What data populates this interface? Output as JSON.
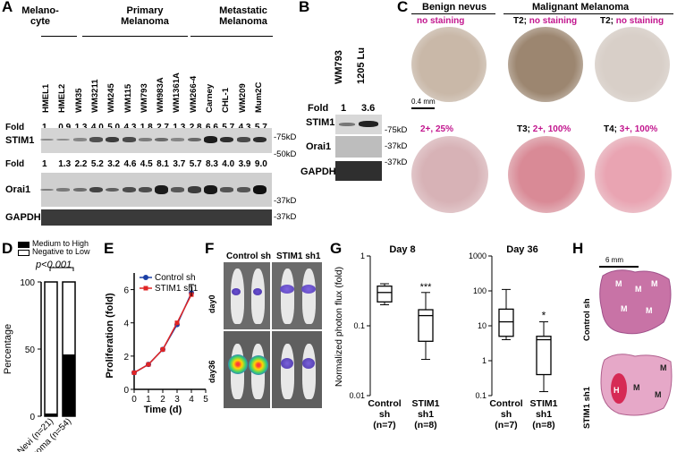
{
  "panelA": {
    "label": "A",
    "groups": [
      "Melano-\ncyte",
      "Primary\nMelanoma",
      "Metastatic\nMelanoma"
    ],
    "lanes": [
      "HMEL1",
      "HMEL2",
      "WM35",
      "WM3211",
      "WM245",
      "WM115",
      "WM793",
      "WM983A",
      "WM1361A",
      "WM266-4",
      "Carney",
      "CHL-1",
      "WM209",
      "Mum2C"
    ],
    "fold1_label": "Fold",
    "fold1": [
      "1",
      "0.9",
      "1.3",
      "4.0",
      "5.0",
      "4.3",
      "1.8",
      "2.7",
      "1.3",
      "2.8",
      "6.6",
      "5.7",
      "4.3",
      "5.7"
    ],
    "fold2_label": "Fold",
    "fold2": [
      "1",
      "1.3",
      "2.2",
      "5.2",
      "3.2",
      "4.6",
      "4.5",
      "8.1",
      "3.7",
      "5.7",
      "8.3",
      "4.0",
      "3.9",
      "9.0"
    ],
    "rows": [
      "STIM1",
      "Orai1",
      "GAPDH"
    ],
    "markers": [
      "-75kD",
      "-50kD",
      "-37kD",
      "-37kD"
    ]
  },
  "panelB": {
    "label": "B",
    "lanes": [
      "WM793",
      "1205 Lu"
    ],
    "fold_label": "Fold",
    "fold": [
      "1",
      "3.6"
    ],
    "rows": [
      "STIM1",
      "Orai1",
      "GAPDH"
    ],
    "markers": [
      "-75kD",
      "-37kD",
      "-37kD"
    ]
  },
  "panelC": {
    "label": "C",
    "header_benign": "Benign nevus",
    "header_malignant": "Malignant Melanoma",
    "top": [
      {
        "stage": "",
        "text": "no staining"
      },
      {
        "stage": "T2;",
        "text": "no staining"
      },
      {
        "stage": "T2;",
        "text": "no staining"
      }
    ],
    "bottom": [
      {
        "stage": "",
        "text": "2+, 25%"
      },
      {
        "stage": "T3;",
        "text": "2+, 100%"
      },
      {
        "stage": "T4;",
        "text": "3+, 100%"
      }
    ],
    "scale": "0.4 mm"
  },
  "panelD": {
    "label": "D",
    "legend": [
      "Medium to High",
      "Negative to Low"
    ],
    "pvalue": "p<0.001",
    "ylabel": "Percentage",
    "yticks": [
      "0",
      "50",
      "100"
    ],
    "xlabels": [
      "Nevi (n=21)",
      "Melanoma (n=54)"
    ]
  },
  "panelE": {
    "label": "E",
    "ylabel": "Proliferation (fold)",
    "xlabel": "Time (d)",
    "yticks": [
      "0",
      "2",
      "4",
      "6"
    ],
    "xticks": [
      "0",
      "1",
      "2",
      "3",
      "4",
      "5"
    ],
    "legend": [
      "Control sh",
      "STIM1 sh1"
    ]
  },
  "panelF": {
    "label": "F",
    "cols": [
      "Control sh",
      "STIM1 sh1"
    ],
    "rows": [
      "day0",
      "day36"
    ]
  },
  "panelG": {
    "label": "G",
    "ylabel": "Normalized photon flux (fold)",
    "left": {
      "title": "Day 8",
      "yticks": [
        "1",
        "0.1",
        "0.01"
      ],
      "sig": "***"
    },
    "right": {
      "title": "Day 36",
      "yticks": [
        "1000",
        "100",
        "10",
        "1",
        "0.1"
      ],
      "sig": "*"
    },
    "xlabels": [
      "Control\nsh\n(n=7)",
      "STIM1\nsh1\n(n=8)"
    ]
  },
  "panelH": {
    "label": "H",
    "scale": "6 mm",
    "rows": [
      "Control sh",
      "STIM1 sh1"
    ],
    "marks_top": [
      "M",
      "M",
      "M",
      "M",
      "M"
    ],
    "marks_bottom": [
      "H",
      "M",
      "M",
      "M"
    ]
  },
  "chart_data": [
    {
      "type": "bar",
      "title": "",
      "ylabel": "Percentage",
      "categories": [
        "Nevi (n=21)",
        "Melanoma (n=54)"
      ],
      "series": [
        {
          "name": "Medium to High",
          "values": [
            2,
            46
          ]
        },
        {
          "name": "Negative to Low",
          "values": [
            98,
            54
          ]
        }
      ],
      "ylim": [
        0,
        100
      ]
    },
    {
      "type": "line",
      "xlabel": "Time (d)",
      "ylabel": "Proliferation (fold)",
      "x": [
        0,
        1,
        2,
        3,
        4
      ],
      "series": [
        {
          "name": "Control sh",
          "values": [
            1.0,
            1.5,
            2.4,
            3.9,
            5.8
          ]
        },
        {
          "name": "STIM1 sh1",
          "values": [
            1.0,
            1.5,
            2.4,
            4.0,
            5.7
          ]
        }
      ],
      "ylim": [
        0,
        7
      ],
      "xlim": [
        0,
        5
      ]
    },
    {
      "type": "box",
      "title": "Day 8",
      "ylabel": "Normalized photon flux (fold)",
      "categories": [
        "Control sh (n=7)",
        "STIM1 sh1 (n=8)"
      ],
      "boxes": [
        {
          "min": 0.2,
          "q1": 0.22,
          "median": 0.3,
          "q3": 0.37,
          "max": 0.4
        },
        {
          "min": 0.033,
          "q1": 0.06,
          "median": 0.14,
          "q3": 0.17,
          "max": 0.3
        }
      ],
      "scale": "log",
      "ylim": [
        0.01,
        1
      ]
    },
    {
      "type": "box",
      "title": "Day 36",
      "categories": [
        "Control sh (n=7)",
        "STIM1 sh1 (n=8)"
      ],
      "boxes": [
        {
          "min": 4,
          "q1": 5,
          "median": 13,
          "q3": 30,
          "max": 110
        },
        {
          "min": 0.13,
          "q1": 0.4,
          "median": 4,
          "q3": 5,
          "max": 13
        }
      ],
      "scale": "log",
      "ylim": [
        0.1,
        1000
      ]
    }
  ]
}
